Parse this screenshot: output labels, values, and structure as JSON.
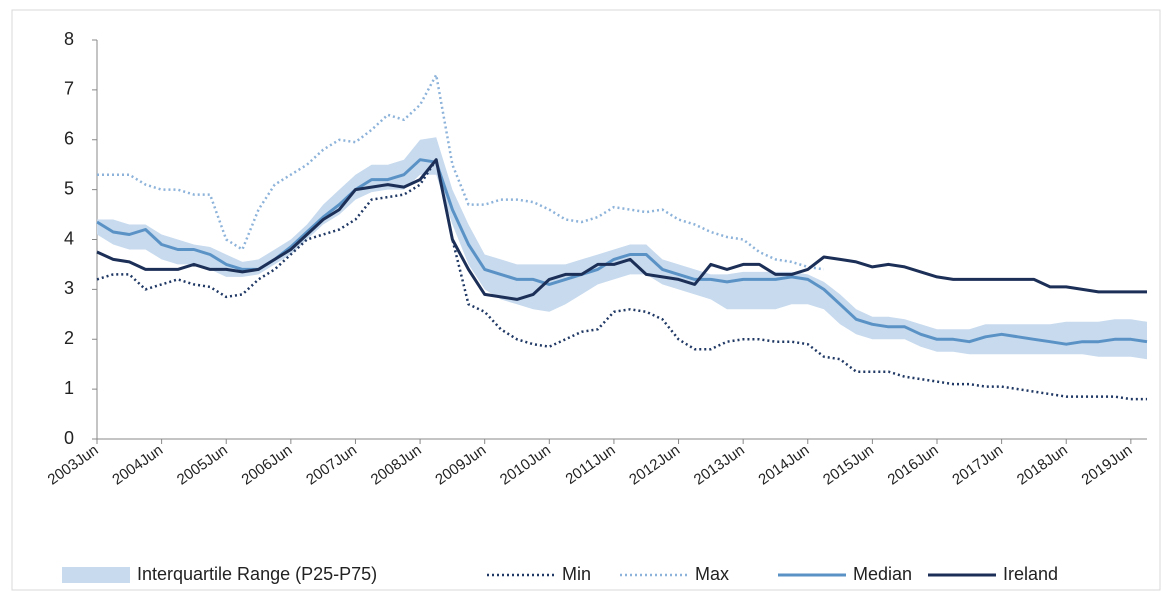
{
  "chart_data": {
    "type": "line",
    "categories": [
      "2003Jun",
      null,
      null,
      null,
      "2004Jun",
      null,
      null,
      null,
      "2005Jun",
      null,
      null,
      null,
      "2006Jun",
      null,
      null,
      null,
      "2007Jun",
      null,
      null,
      null,
      "2008Jun",
      null,
      null,
      null,
      "2009Jun",
      null,
      null,
      null,
      "2010Jun",
      null,
      null,
      null,
      "2011Jun",
      null,
      null,
      null,
      "2012Jun",
      null,
      null,
      null,
      "2013Jun",
      null,
      null,
      null,
      "2014Jun",
      null,
      null,
      null,
      "2015Jun",
      null,
      null,
      null,
      "2016Jun",
      null,
      null,
      null,
      "2017Jun",
      null,
      null,
      null,
      "2018Jun",
      null,
      null,
      null,
      "2019Jun",
      null
    ],
    "ylim": [
      0,
      8
    ],
    "yticks": [
      0,
      1,
      2,
      3,
      4,
      5,
      6,
      7,
      8
    ],
    "legend": "bottom",
    "series": [
      {
        "name": "Interquartile Range (P25-P75)",
        "style": "band",
        "color": "#c7daee",
        "lower": [
          4.1,
          3.9,
          3.8,
          3.8,
          3.6,
          3.5,
          3.5,
          3.4,
          3.25,
          3.25,
          3.3,
          3.5,
          3.7,
          4.0,
          4.3,
          4.5,
          4.8,
          4.95,
          5.0,
          5.0,
          5.3,
          5.3,
          4.3,
          3.5,
          3.0,
          2.8,
          2.7,
          2.6,
          2.55,
          2.7,
          2.9,
          3.1,
          3.2,
          3.3,
          3.3,
          3.1,
          3.0,
          2.9,
          2.8,
          2.6,
          2.6,
          2.6,
          2.6,
          2.7,
          2.7,
          2.6,
          2.3,
          2.1,
          2.0,
          2.0,
          2.0,
          1.85,
          1.75,
          1.75,
          1.7,
          1.7,
          1.7,
          1.7,
          1.7,
          1.7,
          1.7,
          1.7,
          1.65,
          1.65,
          1.65,
          1.6
        ],
        "upper": [
          4.4,
          4.4,
          4.3,
          4.3,
          4.1,
          4.0,
          3.9,
          3.85,
          3.7,
          3.55,
          3.6,
          3.8,
          4.0,
          4.3,
          4.7,
          5.0,
          5.3,
          5.5,
          5.5,
          5.6,
          6.0,
          6.05,
          5.0,
          4.3,
          3.7,
          3.6,
          3.5,
          3.5,
          3.5,
          3.5,
          3.6,
          3.7,
          3.8,
          3.9,
          3.9,
          3.6,
          3.5,
          3.4,
          3.3,
          3.3,
          3.35,
          3.35,
          3.35,
          3.35,
          3.3,
          3.15,
          2.9,
          2.6,
          2.45,
          2.45,
          2.4,
          2.3,
          2.2,
          2.2,
          2.2,
          2.3,
          2.3,
          2.3,
          2.3,
          2.3,
          2.35,
          2.35,
          2.35,
          2.4,
          2.4,
          2.35
        ]
      },
      {
        "name": "Min",
        "style": "dotted",
        "color": "#1f3864",
        "values": [
          3.2,
          3.3,
          3.3,
          3.0,
          3.1,
          3.2,
          3.1,
          3.05,
          2.85,
          2.9,
          3.2,
          3.4,
          3.7,
          4.0,
          4.1,
          4.2,
          4.4,
          4.8,
          4.85,
          4.9,
          5.1,
          5.6,
          4.0,
          2.7,
          2.55,
          2.2,
          2.0,
          1.9,
          1.85,
          2.0,
          2.15,
          2.2,
          2.55,
          2.6,
          2.55,
          2.4,
          2.0,
          1.8,
          1.8,
          1.95,
          2.0,
          2.0,
          1.95,
          1.95,
          1.9,
          1.65,
          1.6,
          1.35,
          1.35,
          1.35,
          1.25,
          1.2,
          1.15,
          1.1,
          1.1,
          1.05,
          1.05,
          1.0,
          0.95,
          0.9,
          0.85,
          0.85,
          0.85,
          0.85,
          0.8,
          0.8
        ]
      },
      {
        "name": "Max",
        "style": "dotted",
        "color": "#8db3da",
        "values": [
          5.3,
          5.3,
          5.3,
          5.1,
          5.0,
          5.0,
          4.9,
          4.9,
          4.0,
          3.8,
          4.6,
          5.1,
          5.3,
          5.5,
          5.8,
          6.0,
          5.95,
          6.2,
          6.5,
          6.4,
          6.7,
          7.3,
          5.5,
          4.7,
          4.7,
          4.8,
          4.8,
          4.75,
          4.6,
          4.4,
          4.35,
          4.45,
          4.65,
          4.6,
          4.55,
          4.6,
          4.4,
          4.3,
          4.15,
          4.05,
          4.0,
          3.75,
          3.6,
          3.55,
          3.45,
          3.4,
          null,
          null,
          null,
          null,
          null,
          null,
          null,
          null,
          null,
          null,
          null,
          null,
          null,
          null,
          null,
          null,
          null,
          null,
          null,
          null
        ]
      },
      {
        "name": "Median",
        "style": "solid",
        "color": "#5a92c6",
        "values": [
          4.35,
          4.15,
          4.1,
          4.2,
          3.9,
          3.8,
          3.8,
          3.7,
          3.5,
          3.4,
          3.4,
          3.6,
          3.85,
          4.15,
          4.45,
          4.7,
          5.0,
          5.2,
          5.2,
          5.3,
          5.6,
          5.55,
          4.6,
          3.9,
          3.4,
          3.3,
          3.2,
          3.2,
          3.1,
          3.2,
          3.3,
          3.4,
          3.6,
          3.7,
          3.7,
          3.4,
          3.3,
          3.2,
          3.2,
          3.15,
          3.2,
          3.2,
          3.2,
          3.25,
          3.2,
          3.0,
          2.7,
          2.4,
          2.3,
          2.25,
          2.25,
          2.1,
          2.0,
          2.0,
          1.95,
          2.05,
          2.1,
          2.05,
          2.0,
          1.95,
          1.9,
          1.95,
          1.95,
          2.0,
          2.0,
          1.95
        ]
      },
      {
        "name": "Ireland",
        "style": "solid",
        "color": "#1c2f57",
        "values": [
          3.75,
          3.6,
          3.55,
          3.4,
          3.4,
          3.4,
          3.5,
          3.4,
          3.4,
          3.35,
          3.4,
          3.6,
          3.8,
          4.1,
          4.4,
          4.6,
          5.0,
          5.05,
          5.1,
          5.05,
          5.2,
          5.6,
          4.0,
          3.4,
          2.9,
          2.85,
          2.8,
          2.9,
          3.2,
          3.3,
          3.3,
          3.5,
          3.5,
          3.6,
          3.3,
          3.25,
          3.2,
          3.1,
          3.5,
          3.4,
          3.5,
          3.5,
          3.3,
          3.3,
          3.4,
          3.65,
          3.6,
          3.55,
          3.45,
          3.5,
          3.45,
          3.35,
          3.25,
          3.2,
          3.2,
          3.2,
          3.2,
          3.2,
          3.2,
          3.05,
          3.05,
          3.0,
          2.95,
          2.95,
          2.95,
          2.95
        ]
      }
    ]
  }
}
